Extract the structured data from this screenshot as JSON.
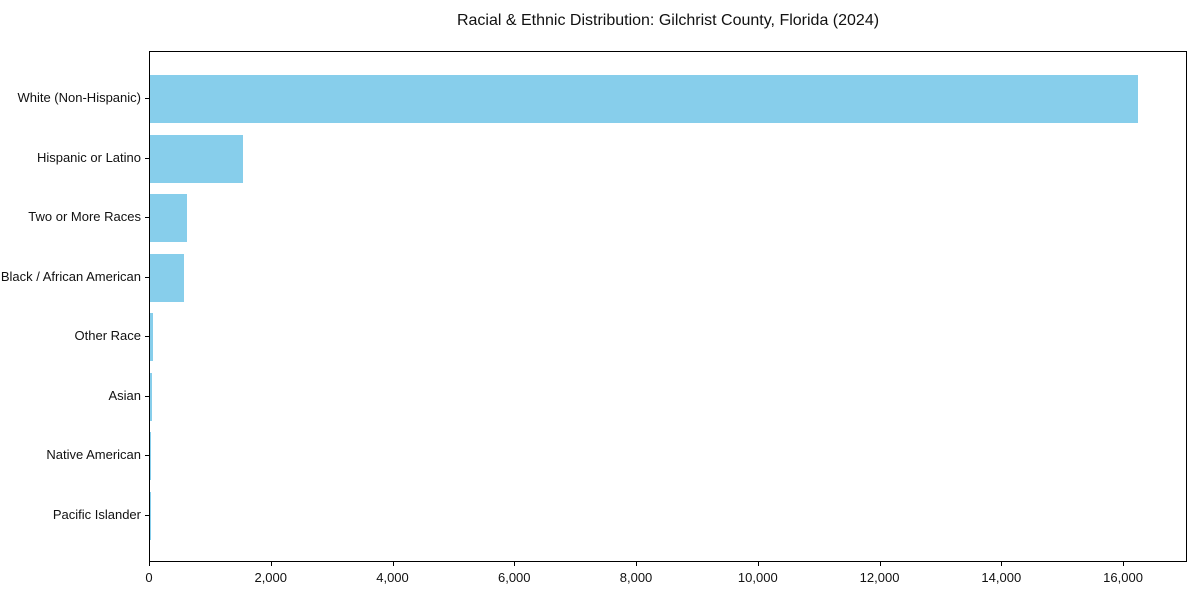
{
  "chart_data": {
    "type": "bar",
    "orientation": "horizontal",
    "title": "Racial & Ethnic Distribution: Gilchrist County, Florida (2024)",
    "xlabel": "",
    "ylabel": "",
    "categories": [
      "White (Non-Hispanic)",
      "Hispanic or Latino",
      "Two or More Races",
      "Black / African American",
      "Other Race",
      "Asian",
      "Native American",
      "Pacific Islander"
    ],
    "values": [
      16230,
      1520,
      610,
      565,
      55,
      40,
      20,
      5
    ],
    "xlim": [
      0,
      17050
    ],
    "xticks": {
      "values": [
        0,
        2000,
        4000,
        6000,
        8000,
        10000,
        12000,
        14000,
        16000
      ],
      "labels": [
        "0",
        "2,000",
        "4,000",
        "6,000",
        "8,000",
        "10,000",
        "12,000",
        "14,000",
        "16,000"
      ]
    },
    "bar_color": "#87CEEB",
    "frame_color": "#000000",
    "background": "#ffffff",
    "grid": false,
    "legend": "none"
  }
}
